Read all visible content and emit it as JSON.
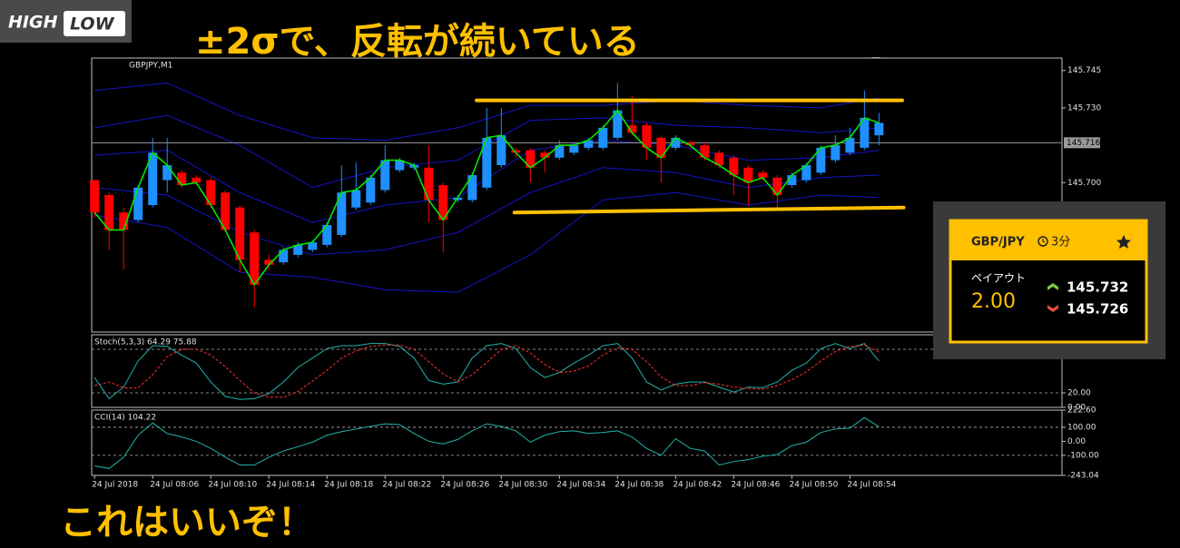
{
  "logo": {
    "left": "HIGH",
    "right": "LOW"
  },
  "headline": "±2σで、反転が続いている",
  "caption": "これはいいぞ！",
  "chart_data": [
    {
      "type": "candlestick",
      "title": "GBPJPY,M1",
      "xlim": [
        -0.2,
        66.6
      ],
      "ylim": [
        145.64,
        145.75
      ],
      "yticks": [
        145.745,
        {
          "value": 145.73,
          "label": "145.730"
        },
        {
          "value": 145.7,
          "label": "145.700"
        }
      ],
      "current_price": 145.716,
      "up_color": "#1e90ff",
      "down_color": "#ff0000",
      "line_color": "#00e600",
      "open": [
        145.701,
        145.695,
        145.688,
        145.685,
        145.691,
        145.701,
        145.704,
        145.702,
        145.701,
        145.696,
        145.69,
        145.68,
        145.669,
        145.668,
        145.671,
        145.673,
        145.675,
        145.679,
        145.69,
        145.692,
        145.697,
        145.705,
        145.706,
        145.706,
        145.699,
        145.693,
        145.693,
        145.698,
        145.707,
        145.713,
        145.713,
        145.712,
        145.71,
        145.712,
        145.714,
        145.714,
        145.718,
        145.723,
        145.723,
        145.718,
        145.714,
        145.716,
        145.715,
        145.712,
        145.71,
        145.706,
        145.704,
        145.702,
        145.699,
        145.701,
        145.704,
        145.709,
        145.712,
        145.714,
        145.719
      ],
      "high": [
        145.701,
        145.696,
        145.69,
        145.699,
        145.718,
        145.718,
        145.705,
        145.703,
        145.702,
        145.697,
        145.691,
        145.681,
        145.671,
        145.674,
        145.676,
        145.677,
        145.684,
        145.707,
        145.708,
        145.703,
        145.715,
        145.71,
        145.708,
        145.715,
        145.7,
        145.695,
        145.704,
        145.73,
        145.73,
        145.714,
        145.714,
        145.713,
        145.717,
        145.716,
        145.718,
        145.723,
        145.74,
        145.735,
        145.724,
        145.719,
        145.719,
        145.717,
        145.716,
        145.713,
        145.711,
        145.707,
        145.705,
        145.703,
        145.704,
        145.708,
        145.715,
        145.719,
        145.722,
        145.737,
        145.728
      ],
      "low": [
        145.686,
        145.673,
        145.665,
        145.684,
        145.69,
        145.696,
        145.698,
        145.699,
        145.69,
        145.68,
        145.664,
        145.65,
        145.665,
        145.667,
        145.67,
        145.672,
        145.674,
        145.678,
        145.689,
        145.691,
        145.696,
        145.704,
        145.705,
        145.684,
        145.672,
        145.692,
        145.692,
        145.697,
        145.706,
        145.71,
        145.7,
        145.704,
        145.709,
        145.711,
        145.713,
        145.713,
        145.717,
        145.719,
        145.709,
        145.7,
        145.713,
        145.714,
        145.709,
        145.706,
        145.695,
        145.691,
        145.701,
        145.689,
        145.698,
        145.7,
        145.703,
        145.708,
        145.711,
        145.713,
        145.715
      ],
      "close": [
        145.688,
        145.681,
        145.681,
        145.698,
        145.712,
        145.707,
        145.699,
        145.7,
        145.691,
        145.681,
        145.669,
        145.659,
        145.667,
        145.673,
        145.675,
        145.676,
        145.683,
        145.696,
        145.697,
        145.702,
        145.709,
        145.709,
        145.707,
        145.693,
        145.685,
        145.694,
        145.703,
        145.718,
        145.719,
        145.712,
        145.706,
        145.71,
        145.715,
        145.715,
        145.717,
        145.722,
        145.729,
        145.72,
        145.714,
        145.71,
        145.718,
        145.715,
        145.71,
        145.707,
        145.703,
        145.7,
        145.702,
        145.695,
        145.703,
        145.707,
        145.714,
        145.715,
        145.718,
        145.726,
        145.724
      ],
      "bands": {
        "color": "#1414c8",
        "x": [
          0,
          5,
          10,
          15,
          20,
          25,
          30,
          35,
          40,
          45,
          50,
          54
        ],
        "lines": [
          [
            145.737,
            145.74,
            145.727,
            145.718,
            145.717,
            145.722,
            145.731,
            145.731,
            145.733,
            145.731,
            145.73,
            145.734
          ],
          [
            145.722,
            145.727,
            145.715,
            145.698,
            145.706,
            145.709,
            145.725,
            145.726,
            145.723,
            145.722,
            145.72,
            145.722
          ],
          [
            145.711,
            145.713,
            145.696,
            145.684,
            145.691,
            145.694,
            145.713,
            145.717,
            145.715,
            145.709,
            145.71,
            145.713
          ],
          [
            145.698,
            145.695,
            145.68,
            145.671,
            145.673,
            145.68,
            145.696,
            145.706,
            145.704,
            145.698,
            145.702,
            145.703
          ],
          [
            145.687,
            145.682,
            145.664,
            145.662,
            145.657,
            145.656,
            145.671,
            145.693,
            145.696,
            145.691,
            145.695,
            145.694
          ]
        ]
      },
      "trend_lines": {
        "color": "#ffc000",
        "lines": [
          {
            "x": [
              26.3,
              55.6
            ],
            "y": [
              145.733,
              145.733
            ]
          },
          {
            "x": [
              28.9,
              55.7
            ],
            "y": [
              145.688,
              145.69
            ]
          }
        ]
      }
    },
    {
      "type": "line",
      "title": "Stoch(5,3,3) 64.29 75.88",
      "xlim": [
        -0.2,
        66.6
      ],
      "ylim": [
        0,
        100
      ],
      "yticks": [
        {
          "value": 20,
          "label": "20.00"
        },
        {
          "value": 0,
          "label": "0.00"
        }
      ],
      "levels": [
        20,
        80
      ],
      "series": [
        {
          "color": "#20b2aa",
          "style": "solid",
          "values": [
            41,
            12,
            28,
            64,
            85,
            84,
            72,
            61,
            35,
            15,
            11,
            12,
            19,
            35,
            55,
            68,
            81,
            85,
            85,
            88,
            88,
            84,
            68,
            37,
            32,
            35,
            68,
            85,
            88,
            81,
            55,
            41,
            48,
            61,
            72,
            85,
            88,
            68,
            35,
            24,
            32,
            35,
            35,
            28,
            21,
            28,
            27,
            35,
            51,
            61,
            81,
            88,
            81,
            88,
            64
          ]
        },
        {
          "color": "#ff3030",
          "style": "dashed",
          "values": [
            30,
            35,
            27,
            27,
            45,
            70,
            80,
            80,
            72,
            56,
            37,
            20,
            14,
            14,
            22,
            36,
            51,
            68,
            78,
            84,
            86,
            86,
            80,
            63,
            46,
            35,
            45,
            62,
            80,
            85,
            75,
            59,
            48,
            50,
            57,
            72,
            82,
            80,
            63,
            42,
            30,
            30,
            34,
            32,
            28,
            26,
            25,
            30,
            38,
            49,
            64,
            77,
            84,
            86,
            76
          ]
        }
      ]
    },
    {
      "type": "line",
      "title": "CCI(14) 104.22",
      "xlim": [
        -0.2,
        66.6
      ],
      "ylim": [
        -243.04,
        222.6
      ],
      "yticks": [
        {
          "value": 222.6,
          "label": "222.60"
        },
        {
          "value": 100,
          "label": "100.00"
        },
        {
          "value": 0,
          "label": "0.00"
        },
        {
          "value": -100,
          "label": "-100.00"
        },
        {
          "value": -243.04,
          "label": "-243.04"
        }
      ],
      "levels": [
        100,
        -100
      ],
      "xticks": [
        {
          "value": 0,
          "label": "24 Jul 2018"
        },
        {
          "value": 4,
          "label": "24 Jul 08:06"
        },
        {
          "value": 8,
          "label": "24 Jul 08:10"
        },
        {
          "value": 12,
          "label": "24 Jul 08:14"
        },
        {
          "value": 16,
          "label": "24 Jul 08:18"
        },
        {
          "value": 20,
          "label": "24 Jul 08:22"
        },
        {
          "value": 24,
          "label": "24 Jul 08:26"
        },
        {
          "value": 28,
          "label": "24 Jul 08:30"
        },
        {
          "value": 32,
          "label": "24 Jul 08:34"
        },
        {
          "value": 36,
          "label": "24 Jul 08:38"
        },
        {
          "value": 40,
          "label": "24 Jul 08:42"
        },
        {
          "value": 44,
          "label": "24 Jul 08:46"
        },
        {
          "value": 48,
          "label": "24 Jul 08:50"
        },
        {
          "value": 52,
          "label": "24 Jul 08:54"
        }
      ],
      "series": [
        {
          "color": "#20b2aa",
          "style": "solid",
          "values": [
            -175,
            -194,
            -113,
            44,
            131,
            56,
            31,
            0,
            -50,
            -113,
            -169,
            -169,
            -113,
            -69,
            -38,
            -6,
            44,
            69,
            88,
            106,
            125,
            119,
            56,
            0,
            -19,
            13,
            75,
            125,
            106,
            75,
            -6,
            44,
            69,
            75,
            56,
            63,
            75,
            31,
            -50,
            -100,
            19,
            -50,
            -69,
            -169,
            -144,
            -131,
            -106,
            -94,
            -31,
            -6,
            63,
            88,
            94,
            169,
            104
          ]
        }
      ]
    }
  ],
  "widget": {
    "pair": "GBP/JPY",
    "duration": "3分",
    "payout_label": "ペイアウト",
    "payout": "2.00",
    "high_price": "145.732",
    "low_price": "145.726"
  }
}
